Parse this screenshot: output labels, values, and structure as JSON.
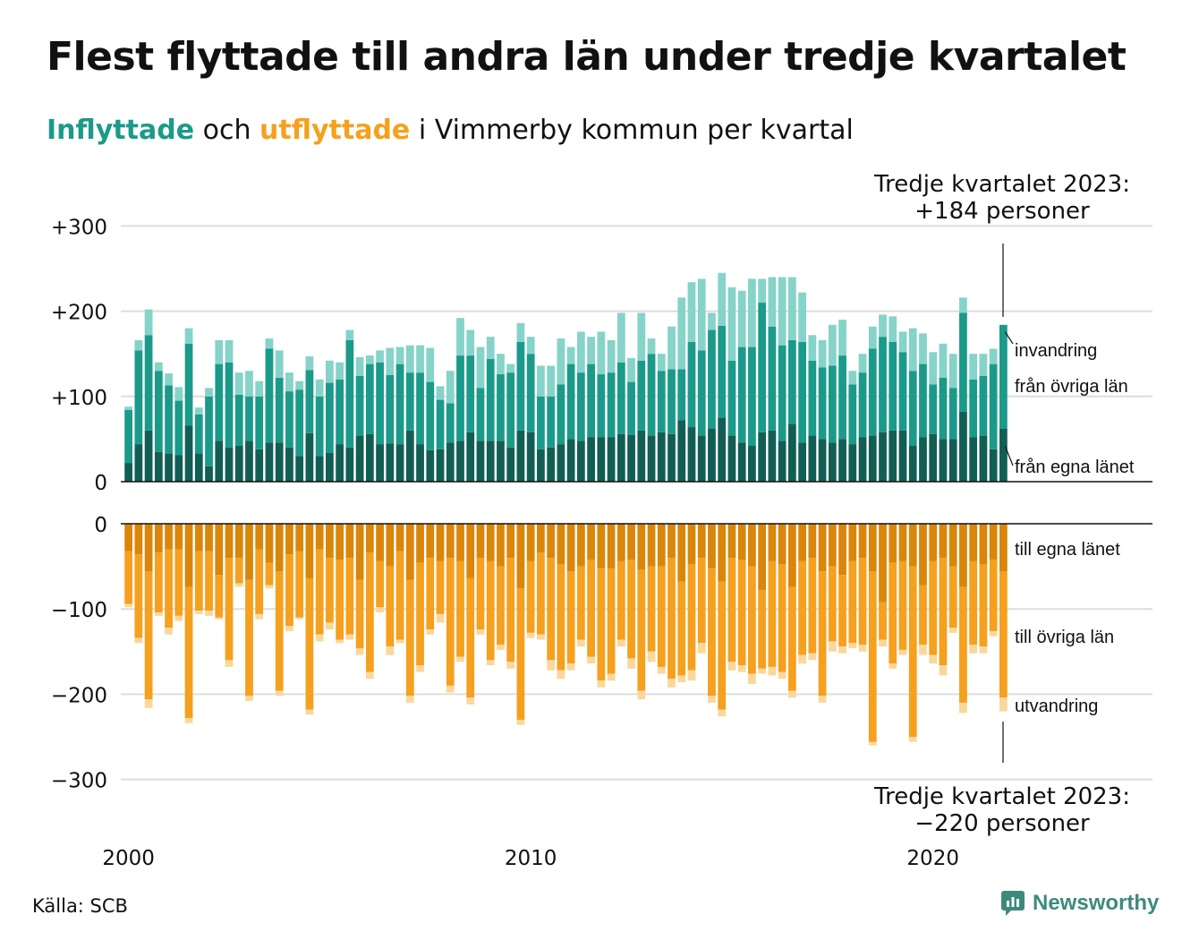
{
  "header": {
    "title": "Flest flyttade till andra län under tredje kvartalet",
    "subtitle_in": "Inflyttade",
    "subtitle_och": "och",
    "subtitle_out": "utflyttade",
    "subtitle_rest": "i Vimmerby  kommun  per  kvartal"
  },
  "footer": {
    "source": "Källa: SCB",
    "brand": "Newsworthy",
    "brand_icon": "newsworthy-logo-icon"
  },
  "colors": {
    "in_own": "#125e55",
    "in_other": "#1b9a8a",
    "in_immig": "#86d3c9",
    "out_own": "#d9860b",
    "out_other": "#f5a01e",
    "out_emig": "#fad79b",
    "grid": "#dddddd",
    "brand": "#3d8a7c"
  },
  "chart_data": [
    {
      "type": "bar",
      "stacked": true,
      "panel": "top",
      "x_start": 2000.0,
      "x_step": 0.25,
      "x_ticks": [
        "2000",
        "2010",
        "2020"
      ],
      "ylim": [
        0,
        300
      ],
      "y_ticks": [
        {
          "value": 0,
          "label": "0"
        },
        {
          "value": 100,
          "label": "+100"
        },
        {
          "value": 200,
          "label": "+200"
        },
        {
          "value": 300,
          "label": "+300"
        }
      ],
      "annotation": {
        "line1": "Tredje kvartalet 2023:",
        "line2": "+184 personer"
      },
      "series": [
        {
          "name": "från egna länet",
          "values": [
            22,
            44,
            60,
            35,
            33,
            31,
            66,
            33,
            18,
            48,
            40,
            42,
            48,
            38,
            46,
            46,
            40,
            30,
            57,
            30,
            34,
            44,
            40,
            54,
            56,
            44,
            45,
            44,
            60,
            44,
            37,
            38,
            46,
            48,
            58,
            48,
            48,
            48,
            40,
            60,
            58,
            38,
            40,
            44,
            50,
            48,
            52,
            52,
            52,
            56,
            55,
            60,
            54,
            58,
            56,
            72,
            64,
            54,
            62,
            75,
            54,
            46,
            42,
            58,
            60,
            48,
            68,
            46,
            54,
            50,
            46,
            50,
            44,
            52,
            54,
            58,
            60,
            60,
            42,
            52,
            56,
            50,
            50,
            82,
            52,
            54,
            38,
            62
          ]
        },
        {
          "name": "från övriga län",
          "values": [
            62,
            110,
            112,
            95,
            80,
            64,
            96,
            46,
            82,
            90,
            100,
            60,
            52,
            62,
            110,
            76,
            66,
            78,
            74,
            70,
            82,
            76,
            126,
            70,
            82,
            96,
            80,
            94,
            68,
            84,
            80,
            58,
            46,
            100,
            90,
            62,
            96,
            78,
            88,
            104,
            92,
            62,
            60,
            70,
            88,
            80,
            86,
            74,
            76,
            84,
            62,
            82,
            96,
            72,
            76,
            60,
            100,
            100,
            116,
            108,
            88,
            112,
            116,
            152,
            122,
            112,
            98,
            118,
            88,
            84,
            90,
            98,
            70,
            76,
            102,
            112,
            104,
            92,
            88,
            86,
            58,
            72,
            60,
            116,
            68,
            70,
            100,
            122
          ]
        },
        {
          "name": "invandring",
          "values": [
            4,
            12,
            30,
            10,
            14,
            16,
            18,
            8,
            10,
            28,
            26,
            26,
            30,
            18,
            12,
            32,
            22,
            10,
            16,
            20,
            26,
            20,
            12,
            22,
            10,
            14,
            32,
            20,
            32,
            32,
            40,
            16,
            38,
            44,
            30,
            48,
            26,
            24,
            10,
            22,
            20,
            36,
            36,
            54,
            20,
            48,
            32,
            50,
            38,
            58,
            28,
            56,
            18,
            20,
            50,
            84,
            70,
            84,
            20,
            62,
            86,
            66,
            80,
            28,
            58,
            80,
            74,
            58,
            30,
            32,
            48,
            42,
            16,
            22,
            26,
            26,
            30,
            24,
            50,
            36,
            38,
            40,
            40,
            18,
            30,
            26,
            18,
            0
          ]
        }
      ]
    },
    {
      "type": "bar",
      "stacked": true,
      "panel": "bottom",
      "x_start": 2000.0,
      "x_step": 0.25,
      "ylim": [
        -300,
        0
      ],
      "y_ticks": [
        {
          "value": 0,
          "label": "0"
        },
        {
          "value": -100,
          "label": "−100"
        },
        {
          "value": -200,
          "label": "−200"
        },
        {
          "value": -300,
          "label": "−300"
        }
      ],
      "annotation": {
        "line1": "Tredje kvartalet 2023:",
        "line2": "−220 personer"
      },
      "series": [
        {
          "name": "till egna länet",
          "values": [
            -32,
            -36,
            -56,
            -34,
            -30,
            -30,
            -74,
            -32,
            -32,
            -60,
            -40,
            -40,
            -66,
            -30,
            -46,
            -56,
            -36,
            -32,
            -64,
            -30,
            -40,
            -42,
            -40,
            -66,
            -34,
            -44,
            -50,
            -32,
            -66,
            -46,
            -40,
            -44,
            -40,
            -44,
            -64,
            -40,
            -44,
            -50,
            -40,
            -76,
            -44,
            -34,
            -40,
            -48,
            -56,
            -50,
            -42,
            -52,
            -52,
            -44,
            -42,
            -54,
            -50,
            -50,
            -40,
            -68,
            -48,
            -40,
            -52,
            -68,
            -40,
            -42,
            -50,
            -78,
            -44,
            -48,
            -74,
            -44,
            -40,
            -56,
            -50,
            -60,
            -44,
            -40,
            -56,
            -92,
            -46,
            -44,
            -50,
            -72,
            -44,
            -40,
            -50,
            -74,
            -44,
            -48,
            -42,
            -56
          ]
        },
        {
          "name": "till övriga län",
          "values": [
            -62,
            -98,
            -150,
            -70,
            -92,
            -78,
            -154,
            -70,
            -70,
            -50,
            -120,
            -30,
            -136,
            -76,
            -26,
            -140,
            -84,
            -78,
            -154,
            -100,
            -76,
            -94,
            -90,
            -80,
            -140,
            -54,
            -94,
            -104,
            -136,
            -120,
            -84,
            -62,
            -150,
            -112,
            -140,
            -84,
            -116,
            -92,
            -122,
            -154,
            -84,
            -96,
            -120,
            -124,
            -108,
            -86,
            -114,
            -132,
            -124,
            -92,
            -116,
            -142,
            -100,
            -118,
            -142,
            -110,
            -124,
            -100,
            -150,
            -150,
            -122,
            -124,
            -126,
            -92,
            -124,
            -126,
            -122,
            -110,
            -112,
            -146,
            -88,
            -84,
            -96,
            -102,
            -200,
            -44,
            -118,
            -104,
            -200,
            -70,
            -110,
            -126,
            -72,
            -136,
            -98,
            -96,
            -84,
            -148
          ]
        },
        {
          "name": "utvandring",
          "values": [
            -4,
            -6,
            -10,
            -4,
            -8,
            -6,
            -6,
            -4,
            -6,
            -2,
            -8,
            -4,
            -6,
            -6,
            -4,
            -6,
            -6,
            -2,
            -6,
            -8,
            -8,
            -4,
            -6,
            -8,
            -8,
            -6,
            -10,
            -4,
            -8,
            -8,
            -6,
            -10,
            -8,
            -6,
            -8,
            -6,
            -6,
            -6,
            -8,
            -6,
            -6,
            -6,
            -12,
            -10,
            -8,
            -8,
            -8,
            -8,
            -8,
            -8,
            -12,
            -10,
            -12,
            -8,
            -10,
            -8,
            -12,
            -12,
            -8,
            -8,
            -10,
            -8,
            -12,
            -6,
            -10,
            -8,
            -8,
            -10,
            -8,
            -8,
            -12,
            -8,
            -6,
            -8,
            -4,
            -8,
            -6,
            -6,
            -6,
            -12,
            -10,
            -12,
            -6,
            -12,
            -10,
            -8,
            -6,
            -16
          ]
        }
      ]
    }
  ]
}
